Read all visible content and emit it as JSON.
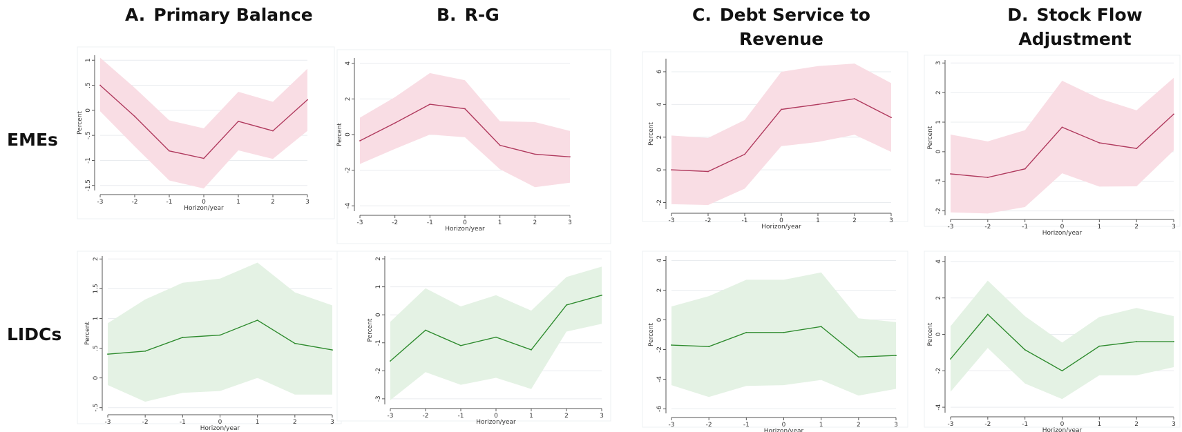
{
  "columns": [
    {
      "letter": "A.",
      "title": "Primary Balance"
    },
    {
      "letter": "B.",
      "title": "R-G"
    },
    {
      "letter": "C.",
      "title": "Debt Service to Revenue"
    },
    {
      "letter": "D.",
      "title": "Stock Flow Adjustment"
    }
  ],
  "rows": [
    "EMEs",
    "LIDCs"
  ],
  "colors": {
    "EMEs": {
      "line": "#b03a5e",
      "band": "#f9dde4"
    },
    "LIDCs": {
      "line": "#2e8b2e",
      "band": "#e4f2e4"
    }
  },
  "chart_data": [
    {
      "id": "eme-a",
      "type": "line",
      "ylabel": "Percent",
      "xlabel": "Horizon/year",
      "x": [
        -3,
        -2,
        -1,
        0,
        1,
        2,
        3
      ],
      "xticks": [
        "-3",
        "-2",
        "-1",
        "0",
        "1",
        "2",
        "3"
      ],
      "ylim": [
        -1.6,
        1.1
      ],
      "yticks": [
        -1.5,
        -1,
        -0.5,
        0,
        0.5,
        1
      ],
      "ytick_labels": [
        "-1.5",
        "-1",
        "-.5",
        "0",
        ".5",
        "1"
      ],
      "series": [
        {
          "values": [
            0.5,
            -0.12,
            -0.81,
            -0.96,
            -0.22,
            -0.41,
            0.21
          ]
        }
      ],
      "ci_upper": [
        1.05,
        0.45,
        -0.2,
        -0.36,
        0.37,
        0.17,
        0.83
      ],
      "ci_lower": [
        -0.02,
        -0.72,
        -1.4,
        -1.56,
        -0.8,
        -0.97,
        -0.41
      ]
    },
    {
      "id": "eme-b",
      "type": "line",
      "ylabel": "Percent",
      "xlabel": "Horizon/year",
      "x": [
        -3,
        -2,
        -1,
        0,
        1,
        2,
        3
      ],
      "xticks": [
        "-3",
        "-2",
        "-1",
        "0",
        "1",
        "2",
        "3"
      ],
      "ylim": [
        -4.3,
        4.3
      ],
      "yticks": [
        -4,
        -2,
        0,
        2,
        4
      ],
      "ytick_labels": [
        "-4",
        "-2",
        "0",
        "2",
        "4"
      ],
      "series": [
        {
          "values": [
            -0.35,
            0.65,
            1.7,
            1.45,
            -0.6,
            -1.1,
            -1.25
          ]
        }
      ],
      "ci_upper": [
        0.95,
        2.1,
        3.45,
        3.05,
        0.75,
        0.7,
        0.2
      ],
      "ci_lower": [
        -1.65,
        -0.8,
        0.0,
        -0.15,
        -1.95,
        -2.95,
        -2.7
      ]
    },
    {
      "id": "eme-c",
      "type": "line",
      "ylabel": "Percent",
      "xlabel": "Horizon/year",
      "x": [
        -3,
        -2,
        -1,
        0,
        1,
        2,
        3
      ],
      "xticks": [
        "-3",
        "-2",
        "-1",
        "0",
        "1",
        "2",
        "3"
      ],
      "ylim": [
        -2.4,
        6.8
      ],
      "yticks": [
        -2,
        0,
        2,
        4,
        6
      ],
      "ytick_labels": [
        "-2",
        "0",
        "2",
        "4",
        "6"
      ],
      "series": [
        {
          "values": [
            0.0,
            -0.1,
            0.95,
            3.7,
            4.0,
            4.35,
            3.2
          ]
        }
      ],
      "ci_upper": [
        2.1,
        1.95,
        3.05,
        6.0,
        6.35,
        6.5,
        5.3
      ],
      "ci_lower": [
        -2.1,
        -2.15,
        -1.15,
        1.45,
        1.7,
        2.15,
        1.1
      ]
    },
    {
      "id": "eme-d",
      "type": "line",
      "ylabel": "Percent",
      "xlabel": "Horizon/year",
      "x": [
        -3,
        -2,
        -1,
        0,
        1,
        2,
        3
      ],
      "xticks": [
        "-3",
        "-2",
        "-1",
        "0",
        "1",
        "2",
        "3"
      ],
      "ylim": [
        -2.15,
        3.1
      ],
      "yticks": [
        -2,
        -1,
        0,
        1,
        2,
        3
      ],
      "ytick_labels": [
        "-2",
        "-1",
        "0",
        "1",
        "2",
        "3"
      ],
      "series": [
        {
          "values": [
            -0.75,
            -0.87,
            -0.58,
            0.83,
            0.3,
            0.11,
            1.27
          ]
        }
      ],
      "ci_upper": [
        0.58,
        0.35,
        0.73,
        2.4,
        1.8,
        1.4,
        2.5
      ],
      "ci_lower": [
        -2.05,
        -2.09,
        -1.87,
        -0.73,
        -1.18,
        -1.17,
        0.04
      ]
    },
    {
      "id": "lidc-a",
      "type": "line",
      "ylabel": "Percent",
      "xlabel": "Horizon/year",
      "x": [
        -3,
        -2,
        -1,
        0,
        1,
        2,
        3
      ],
      "xticks": [
        "-3",
        "-2",
        "-1",
        "0",
        "1",
        "2",
        "3"
      ],
      "ylim": [
        -0.55,
        2.05
      ],
      "yticks": [
        -0.5,
        0,
        0.5,
        1,
        1.5,
        2
      ],
      "ytick_labels": [
        "-.5",
        "0",
        ".5",
        "1",
        "1.5",
        "2"
      ],
      "series": [
        {
          "values": [
            0.4,
            0.45,
            0.68,
            0.72,
            0.97,
            0.58,
            0.47
          ]
        }
      ],
      "ci_upper": [
        0.92,
        1.32,
        1.6,
        1.67,
        1.94,
        1.44,
        1.22
      ],
      "ci_lower": [
        -0.12,
        -0.4,
        -0.25,
        -0.22,
        0.0,
        -0.28,
        -0.28
      ]
    },
    {
      "id": "lidc-b",
      "type": "line",
      "ylabel": "Percent",
      "xlabel": "Horizon/year",
      "x": [
        -3,
        -2,
        -1,
        0,
        1,
        2,
        3
      ],
      "xticks": [
        "-3",
        "-2",
        "-1",
        "0",
        "1",
        "2",
        "3"
      ],
      "ylim": [
        -3.2,
        2.1
      ],
      "yticks": [
        -3,
        -2,
        -1,
        0,
        1,
        2
      ],
      "ytick_labels": [
        "-3",
        "-2",
        "-1",
        "0",
        "1",
        "2"
      ],
      "series": [
        {
          "values": [
            -1.65,
            -0.55,
            -1.1,
            -0.8,
            -1.25,
            0.35,
            0.7
          ]
        }
      ],
      "ci_upper": [
        -0.25,
        0.95,
        0.3,
        0.7,
        0.15,
        1.35,
        1.72
      ],
      "ci_lower": [
        -3.05,
        -2.05,
        -2.5,
        -2.25,
        -2.65,
        -0.6,
        -0.32
      ]
    },
    {
      "id": "lidc-c",
      "type": "line",
      "ylabel": "Percent",
      "xlabel": "Horizon/year",
      "x": [
        -3,
        -2,
        -1,
        0,
        1,
        2,
        3
      ],
      "xticks": [
        "-3",
        "-2",
        "-1",
        "0",
        "1",
        "2",
        "3"
      ],
      "ylim": [
        -6.3,
        4.3
      ],
      "yticks": [
        -6,
        -4,
        -2,
        0,
        2,
        4
      ],
      "ytick_labels": [
        "-6",
        "-4",
        "-2",
        "0",
        "2",
        "4"
      ],
      "series": [
        {
          "values": [
            -1.7,
            -1.8,
            -0.85,
            -0.85,
            -0.45,
            -2.5,
            -2.4
          ]
        }
      ],
      "ci_upper": [
        0.9,
        1.6,
        2.7,
        2.7,
        3.2,
        0.1,
        -0.15
      ],
      "ci_lower": [
        -4.4,
        -5.2,
        -4.45,
        -4.4,
        -4.05,
        -5.1,
        -4.65
      ]
    },
    {
      "id": "lidc-d",
      "type": "line",
      "ylabel": "Percent",
      "xlabel": "Horizon/year",
      "x": [
        -3,
        -2,
        -1,
        0,
        1,
        2,
        3
      ],
      "xticks": [
        "-3",
        "-2",
        "-1",
        "0",
        "1",
        "2",
        "3"
      ],
      "ylim": [
        -4.3,
        4.3
      ],
      "yticks": [
        -4,
        -2,
        0,
        2,
        4
      ],
      "ytick_labels": [
        "-4",
        "-2",
        "0",
        "2",
        "4"
      ],
      "series": [
        {
          "values": [
            -1.35,
            1.1,
            -0.85,
            -2.0,
            -0.65,
            -0.4,
            -0.4
          ]
        }
      ],
      "ci_upper": [
        0.45,
        2.95,
        1.0,
        -0.45,
        0.95,
        1.45,
        1.0
      ],
      "ci_lower": [
        -3.15,
        -0.75,
        -2.7,
        -3.55,
        -2.25,
        -2.25,
        -1.8
      ]
    }
  ]
}
